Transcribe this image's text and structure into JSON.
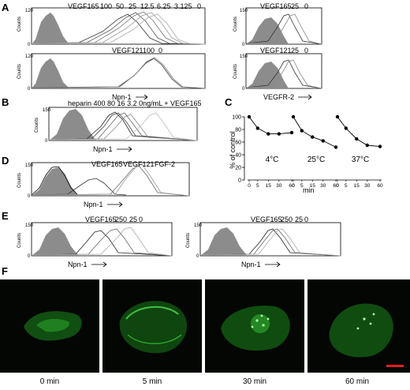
{
  "panels": {
    "A": "A",
    "B": "B",
    "C": "C",
    "D": "D",
    "E": "E",
    "F": "F"
  },
  "axis_text": {
    "counts": "Counts",
    "npn1": "Npn-1",
    "vegfr2": "VEGFR-2",
    "pct_control": "% of control",
    "min": "min"
  },
  "panelA": {
    "tl_labels": [
      "VEGF165",
      "100",
      "50",
      "25",
      "12.5",
      "6.25",
      "3.125",
      "0"
    ],
    "tr_labels": [
      "VEGF165",
      "25",
      "0"
    ],
    "bl_labels": [
      "VEGF121",
      "100",
      "0"
    ],
    "br_labels": [
      "VEGF121",
      "25",
      "0"
    ],
    "tl_yticks": [
      "0",
      "120"
    ],
    "tr_yticks": [
      "0",
      "150"
    ],
    "bl_yticks": [
      "0",
      "120"
    ],
    "br_yticks": [
      "0",
      "150"
    ],
    "left_xticks": [
      "10⁰",
      "10¹",
      "10²",
      "10³",
      "10⁴"
    ],
    "right_xticks": [
      "10⁰",
      "10¹",
      "10²",
      "10³",
      "10⁴"
    ]
  },
  "panelB": {
    "labels": "heparin 400 80 16 3.2 0ng/mL + VEGF165",
    "yticks": [
      "0",
      "150"
    ],
    "xticks": [
      "10⁰",
      "10¹",
      "10²",
      "10³",
      "10⁴"
    ]
  },
  "panelD": {
    "labels": [
      "VEGF165",
      "VEGF121",
      "FGF-2"
    ],
    "yticks": [
      "0",
      "150"
    ],
    "xticks": [
      "10⁰",
      "10¹",
      "10²",
      "10³",
      "10⁴"
    ]
  },
  "panelE": {
    "left_labels": [
      "VEGF165",
      "250",
      "25",
      "0"
    ],
    "right_labels": [
      "VEGF165",
      "250",
      "25",
      "0"
    ],
    "yticks": [
      "0",
      "150"
    ],
    "xticks": [
      "10⁰",
      "10¹",
      "10²",
      "10³",
      "10⁴"
    ]
  },
  "panelF": {
    "times": [
      "0 min",
      "5 min",
      "30 min",
      "60 min"
    ]
  },
  "chart_data": {
    "type": "line",
    "ylabel": "% of control",
    "xlabel": "min",
    "ylim": [
      0,
      100
    ],
    "yticks": [
      "0",
      "20",
      "40",
      "60",
      "80",
      "100"
    ],
    "x": [
      0,
      5,
      15,
      30,
      60
    ],
    "xticks": [
      "0",
      "5",
      "15",
      "30",
      "60"
    ],
    "series": [
      {
        "name": "4°C",
        "values": [
          100,
          82,
          73,
          73,
          75
        ]
      },
      {
        "name": "25°C",
        "values": [
          100,
          78,
          68,
          62,
          52
        ]
      },
      {
        "name": "37°C",
        "values": [
          100,
          82,
          65,
          55,
          53
        ]
      }
    ]
  }
}
